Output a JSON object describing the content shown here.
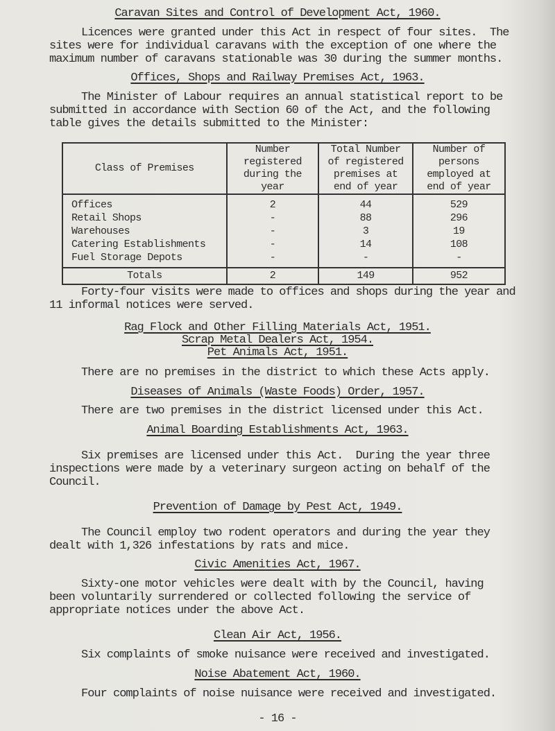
{
  "caravan": {
    "heading": "Caravan Sites and Control of Development Act, 1960.",
    "lines": [
      "Licences were granted under this Act in respect of four sites.  The",
      "sites were for individual caravans with the exception of one where the",
      "maximum number of caravans stationable was 30 during the summer months."
    ]
  },
  "offices": {
    "heading": "Offices, Shops and Railway Premises Act, 1963.",
    "lines": [
      "The Minister of Labour requires an annual statistical report to be",
      "submitted in accordance with Section 60 of the Act, and the following",
      "table gives the details submitted to the Minister:"
    ],
    "table": {
      "headers": [
        "Class of Premises",
        "Number registered during the year",
        "Total Number of registered premises at end of year",
        "Number of persons employed at end of year"
      ],
      "rows": [
        [
          "Offices",
          "2",
          "44",
          "529"
        ],
        [
          "Retail Shops",
          "-",
          "88",
          "296"
        ],
        [
          "Warehouses",
          "-",
          "3",
          "19"
        ],
        [
          "Catering Establishments",
          "-",
          "14",
          "108"
        ],
        [
          "Fuel Storage Depots",
          "-",
          "-",
          "-"
        ]
      ],
      "totals": [
        "Totals",
        "2",
        "149",
        "952"
      ]
    },
    "after": [
      "Forty-four visits were made to offices and shops during the year and",
      "11 informal notices were served."
    ]
  },
  "rag": {
    "headings": [
      "Rag Flock and Other Filling Materials Act, 1951.",
      "Scrap Metal Dealers Act, 1954.",
      "Pet Animals Act, 1951."
    ],
    "text": "There are no premises in the district to which these Acts apply."
  },
  "diseases": {
    "heading": "Diseases of Animals (Waste Foods) Order, 1957.",
    "text": "There are two premises in the district licensed under this Act."
  },
  "boarding": {
    "heading": "Animal Boarding Establishments Act, 1963.",
    "lines": [
      "Six premises are licensed under this Act.  During the year three",
      "inspections were made by a veterinary surgeon acting on behalf of the",
      "Council."
    ]
  },
  "pest": {
    "heading": "Prevention of Damage by Pest Act, 1949.",
    "lines": [
      "The Council employ two rodent operators and during the year they",
      "dealt with 1,326 infestations by rats and mice."
    ]
  },
  "civic": {
    "heading": "Civic Amenities Act, 1967.",
    "lines": [
      "Sixty-one motor vehicles were dealt with by the Council, having",
      "been voluntarily surrendered or collected following the service of",
      "appropriate notices under the above Act."
    ]
  },
  "clean_air": {
    "heading": "Clean Air Act, 1956.",
    "text": "Six complaints of smoke nuisance were received and investigated."
  },
  "noise": {
    "heading": "Noise Abatement Act, 1960.",
    "text": "Four complaints of noise nuisance were received and investigated."
  },
  "page_number": "- 16 -"
}
